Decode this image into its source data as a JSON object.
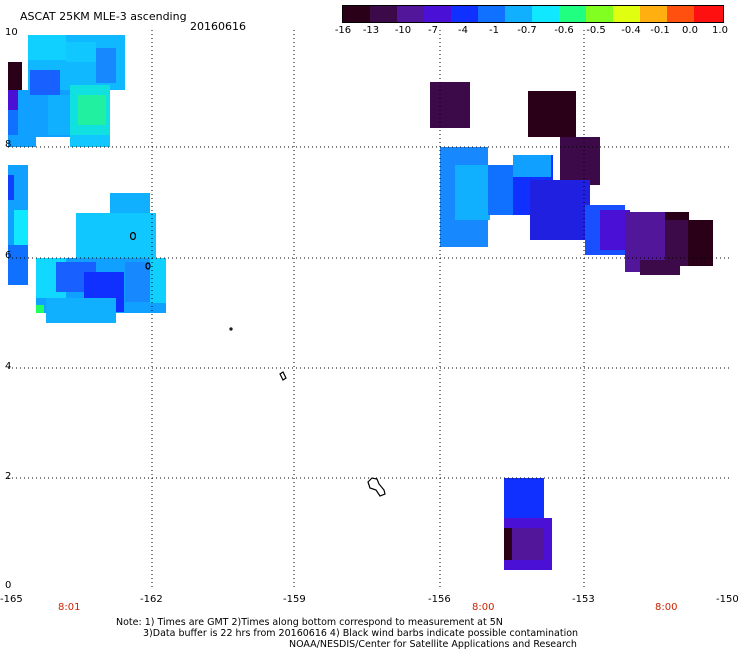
{
  "header": {
    "title": "ASCAT 25KM MLE-3 ascending",
    "date": "20160616"
  },
  "colorbar": {
    "labels": [
      "-16",
      "-13",
      "-10",
      "-7",
      "-4",
      "-1",
      "-0.7",
      "-0.6",
      "-0.5",
      "-0.4",
      "-0.1",
      "0.0",
      "1.0"
    ],
    "colors": [
      "#2a0018",
      "#3c0a48",
      "#52169a",
      "#4a10d6",
      "#1030ff",
      "#1070ff",
      "#10b0ff",
      "#10e8ff",
      "#20ff80",
      "#80ff20",
      "#e0ff10",
      "#ffb010",
      "#ff5010",
      "#ff1010"
    ]
  },
  "axes": {
    "lon_labels": [
      "-165",
      "-162",
      "-159",
      "-156",
      "-153",
      "-150"
    ],
    "lat_labels": [
      "10",
      "8",
      "6",
      "4",
      "2",
      "0"
    ],
    "time_labels": [
      "8:01",
      "8:00",
      "8:00"
    ]
  },
  "footer": {
    "line1": "Note: 1) Times are GMT 2)Times along bottom correspond to measurement at 5N",
    "line2": "3)Data buffer is 22 hrs from 20160616 4) Black wind barbs indicate possible contamination",
    "line3": "NOAA/NESDIS/Center for Satellite Applications and Research"
  }
}
